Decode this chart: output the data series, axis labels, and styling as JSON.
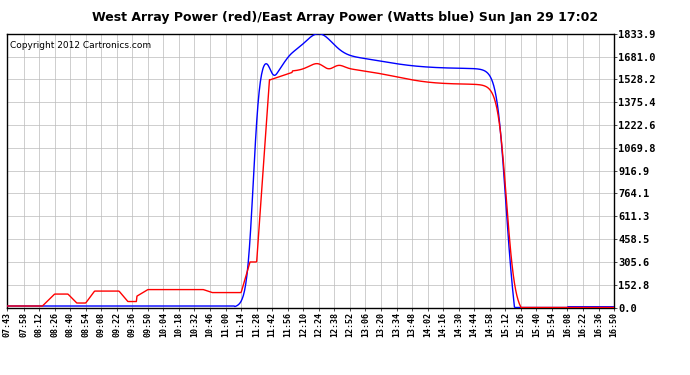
{
  "title": "West Array Power (red)/East Array Power (Watts blue) Sun Jan 29 17:02",
  "copyright": "Copyright 2012 Cartronics.com",
  "bg_color": "#ffffff",
  "plot_bg_color": "#ffffff",
  "grid_color": "#bbbbbb",
  "line_color_red": "#ff0000",
  "line_color_blue": "#0000ff",
  "yticks": [
    0.0,
    152.8,
    305.6,
    458.5,
    611.3,
    764.1,
    916.9,
    1069.8,
    1222.6,
    1375.4,
    1528.2,
    1681.0,
    1833.9
  ],
  "ymax": 1833.9,
  "xtick_labels": [
    "07:43",
    "07:58",
    "08:12",
    "08:26",
    "08:40",
    "08:54",
    "09:08",
    "09:22",
    "09:36",
    "09:50",
    "10:04",
    "10:18",
    "10:32",
    "10:46",
    "11:00",
    "11:14",
    "11:28",
    "11:42",
    "11:56",
    "12:10",
    "12:24",
    "12:38",
    "12:52",
    "13:06",
    "13:20",
    "13:34",
    "13:48",
    "14:02",
    "14:16",
    "14:30",
    "14:44",
    "14:58",
    "15:12",
    "15:26",
    "15:40",
    "15:54",
    "16:08",
    "16:22",
    "16:36",
    "16:50"
  ]
}
